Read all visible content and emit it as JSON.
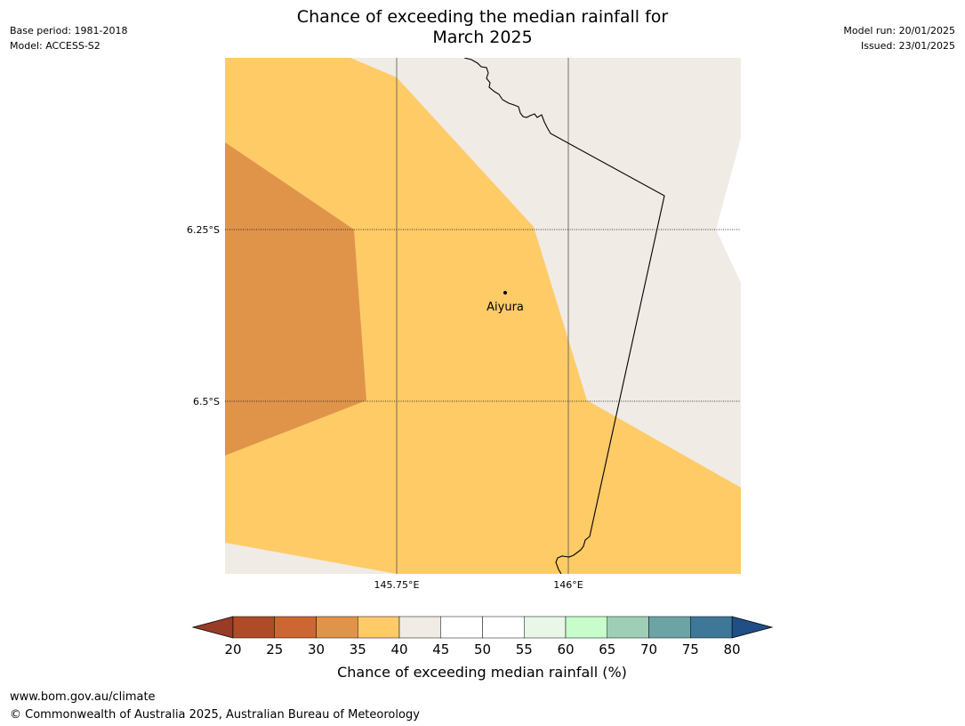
{
  "header": {
    "title_line1": "Chance of exceeding the median rainfall for",
    "title_line2": "March 2025",
    "base_period": "Base period: 1981-2018",
    "model": "Model: ACCESS-S2",
    "model_run": "Model run: 20/01/2025",
    "issued": "Issued: 23/01/2025"
  },
  "map": {
    "latitude_labels": [
      "6.25°S",
      "6.5°S"
    ],
    "longitude_labels": [
      "145.75°E",
      "146°E"
    ],
    "place_name": "Aiyura",
    "category_colors": {
      "p30_35": "#e0944a",
      "p35_40": "#fecb67",
      "p40_45": "#f0ebe5"
    }
  },
  "colorbar": {
    "title": "Chance of exceeding median rainfall (%)",
    "ticks": [
      "20",
      "25",
      "30",
      "35",
      "40",
      "45",
      "50",
      "55",
      "60",
      "65",
      "70",
      "75",
      "80"
    ],
    "low_extend_color": "#983b27",
    "high_extend_color": "#1f4f86",
    "segment_colors": [
      "#b04b27",
      "#cd6633",
      "#e0944a",
      "#fecb67",
      "#f0ebe5",
      "#ffffff",
      "#ffffff",
      "#e9f7e9",
      "#c7fccb",
      "#9dcfb6",
      "#6ca4a5",
      "#3f7798"
    ]
  },
  "footer": {
    "url": "www.bom.gov.au/climate",
    "copyright": "© Commonwealth of Australia 2025, Australian Bureau of Meteorology"
  }
}
